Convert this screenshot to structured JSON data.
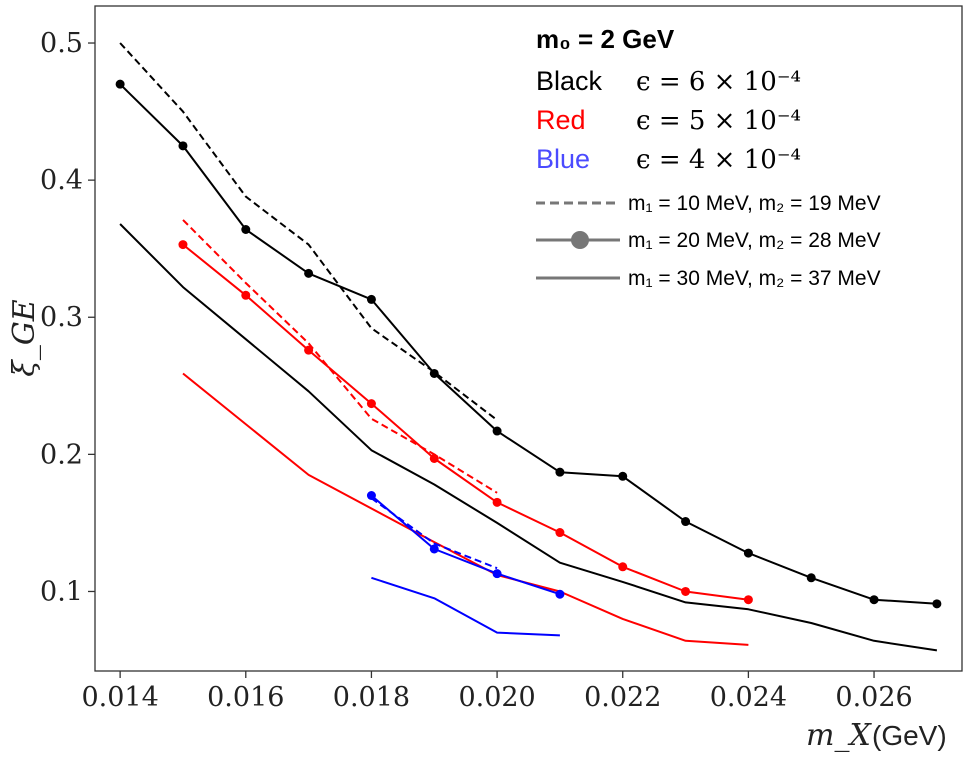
{
  "chart_data": {
    "type": "line",
    "xlabel": "m_X",
    "xlabel_unit": "(GeV)",
    "ylabel": "ξ_GE",
    "xlim": [
      0.0136,
      0.0274
    ],
    "ylim": [
      0.042,
      0.527
    ],
    "x_ticks": [
      0.014,
      0.016,
      0.018,
      0.02,
      0.022,
      0.024,
      0.026
    ],
    "x_tick_labels": [
      "0.014",
      "0.016",
      "0.018",
      "0.020",
      "0.022",
      "0.024",
      "0.026"
    ],
    "y_ticks": [
      0.1,
      0.2,
      0.3,
      0.4,
      0.5
    ],
    "y_tick_labels": [
      "0.1",
      "0.2",
      "0.3",
      "0.4",
      "0.5"
    ],
    "grid": false,
    "legend_position": "top-right",
    "legend": {
      "title": "m₀ = 2 GeV",
      "colors": [
        {
          "name": "Black",
          "color": "#000000",
          "eps": "ϵ = 6 × 10⁻⁴"
        },
        {
          "name": "Red",
          "color": "#ff0000",
          "eps": "ϵ = 5 × 10⁻⁴"
        },
        {
          "name": "Blue",
          "color": "#3a3aff",
          "eps": "ϵ = 4 × 10⁻⁴"
        }
      ],
      "styles": [
        {
          "style": "dashed",
          "label": "m₁ = 10 MeV, m₂ = 19 MeV"
        },
        {
          "style": "marker",
          "label": "m₁ = 20 MeV, m₂ = 28 MeV"
        },
        {
          "style": "solid",
          "label": "m₁ = 30 MeV, m₂ = 37 MeV"
        }
      ]
    },
    "series": [
      {
        "name": "Black dashed (m1=10, m2=19)",
        "color": "#000000",
        "style": "dashed",
        "x": [
          0.014,
          0.015,
          0.016,
          0.017,
          0.018,
          0.019,
          0.02
        ],
        "values": [
          0.5,
          0.45,
          0.388,
          0.353,
          0.292,
          0.26,
          0.225
        ]
      },
      {
        "name": "Black marker (m1=20, m2=28)",
        "color": "#000000",
        "style": "marker",
        "x": [
          0.014,
          0.015,
          0.016,
          0.017,
          0.018,
          0.019,
          0.02,
          0.021,
          0.022,
          0.023,
          0.024,
          0.025,
          0.026,
          0.027
        ],
        "values": [
          0.47,
          0.425,
          0.364,
          0.332,
          0.313,
          0.259,
          0.217,
          0.187,
          0.184,
          0.151,
          0.128,
          0.11,
          0.094,
          0.091
        ]
      },
      {
        "name": "Black solid (m1=30, m2=37)",
        "color": "#000000",
        "style": "solid",
        "x": [
          0.014,
          0.015,
          0.016,
          0.017,
          0.018,
          0.019,
          0.02,
          0.021,
          0.022,
          0.023,
          0.024,
          0.025,
          0.026,
          0.027
        ],
        "values": [
          0.368,
          0.322,
          0.284,
          0.246,
          0.203,
          0.178,
          0.15,
          0.121,
          0.107,
          0.092,
          0.087,
          0.077,
          0.064,
          0.057
        ]
      },
      {
        "name": "Red dashed (m1=10, m2=19)",
        "color": "#ff0000",
        "style": "dashed",
        "x": [
          0.015,
          0.016,
          0.017,
          0.018,
          0.019,
          0.02
        ],
        "values": [
          0.371,
          0.325,
          0.281,
          0.226,
          0.2,
          0.172
        ]
      },
      {
        "name": "Red marker (m1=20, m2=28)",
        "color": "#ff0000",
        "style": "marker",
        "x": [
          0.015,
          0.016,
          0.017,
          0.018,
          0.019,
          0.02,
          0.021,
          0.022,
          0.023,
          0.024
        ],
        "values": [
          0.353,
          0.316,
          0.276,
          0.237,
          0.197,
          0.165,
          0.143,
          0.118,
          0.1,
          0.094
        ]
      },
      {
        "name": "Red solid (m1=30, m2=37)",
        "color": "#ff0000",
        "style": "solid",
        "x": [
          0.015,
          0.017,
          0.019,
          0.02,
          0.021,
          0.022,
          0.023,
          0.024
        ],
        "values": [
          0.259,
          0.185,
          0.136,
          0.112,
          0.1,
          0.08,
          0.064,
          0.061
        ]
      },
      {
        "name": "Blue dashed (m1=10, m2=19)",
        "color": "#0000ff",
        "style": "dashed",
        "x": [
          0.018,
          0.019,
          0.02
        ],
        "values": [
          0.168,
          0.135,
          0.117
        ]
      },
      {
        "name": "Blue marker (m1=20, m2=28)",
        "color": "#0000ff",
        "style": "marker",
        "x": [
          0.018,
          0.019,
          0.02,
          0.021
        ],
        "values": [
          0.17,
          0.131,
          0.113,
          0.098
        ]
      },
      {
        "name": "Blue solid (m1=30, m2=37)",
        "color": "#0000ff",
        "style": "solid",
        "x": [
          0.018,
          0.019,
          0.02,
          0.021
        ],
        "values": [
          0.11,
          0.095,
          0.07,
          0.068
        ]
      }
    ]
  }
}
